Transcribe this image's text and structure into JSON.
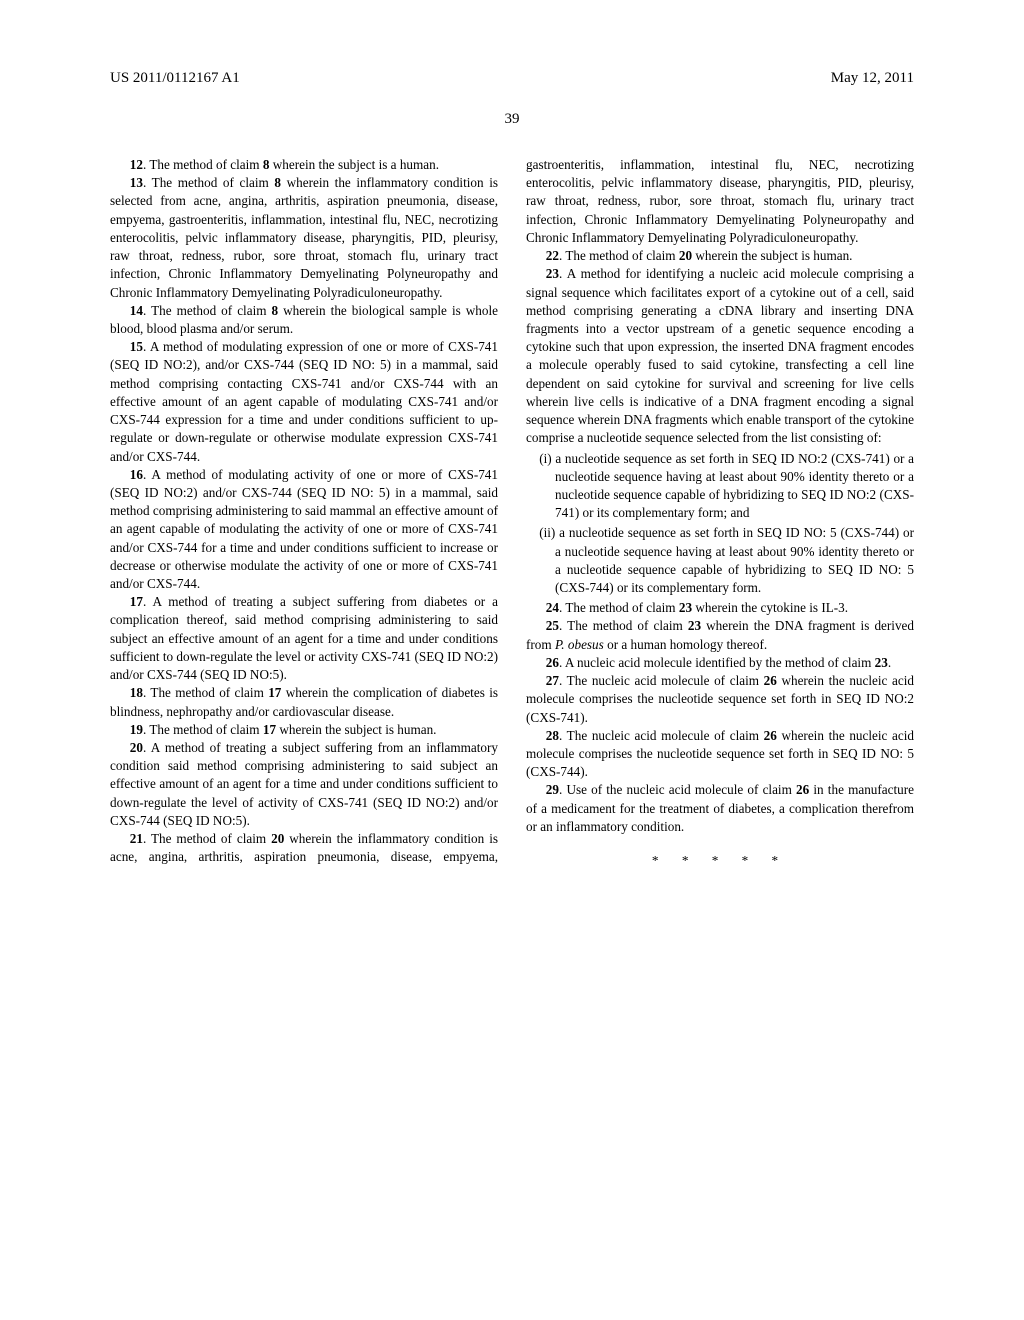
{
  "header": {
    "pub_number": "US 2011/0112167 A1",
    "date": "May 12, 2011"
  },
  "page_number": "39",
  "claims": [
    {
      "n": "12",
      "text": ". The method of claim ",
      "ref": "8",
      "tail": " wherein the subject is a human."
    },
    {
      "n": "13",
      "text": ". The method of claim ",
      "ref": "8",
      "tail": " wherein the inflammatory condition is selected from acne, angina, arthritis, aspiration pneumonia, disease, empyema, gastroenteritis, inflammation, intestinal flu, NEC, necrotizing enterocolitis, pelvic inflammatory disease, pharyngitis, PID, pleurisy, raw throat, redness, rubor, sore throat, stomach flu, urinary tract infection, Chronic Inflammatory Demyelinating Polyneuropathy and Chronic Inflammatory Demyelinating Polyradiculoneuropathy."
    },
    {
      "n": "14",
      "text": ". The method of claim ",
      "ref": "8",
      "tail": " wherein the biological sample is whole blood, blood plasma and/or serum."
    },
    {
      "n": "15",
      "plain": ". A method of modulating expression of one or more of CXS-741 (SEQ ID NO:2), and/or CXS-744 (SEQ ID NO: 5) in a mammal, said method comprising contacting CXS-741 and/or CXS-744 with an effective amount of an agent capable of modulating CXS-741 and/or CXS-744 expression for a time and under conditions sufficient to up-regulate or down-regulate or otherwise modulate expression CXS-741 and/or CXS-744."
    },
    {
      "n": "16",
      "plain": ". A method of modulating activity of one or more of CXS-741 (SEQ ID NO:2) and/or CXS-744 (SEQ ID NO: 5) in a mammal, said method comprising administering to said mammal an effective amount of an agent capable of modulating the activity of one or more of CXS-741 and/or CXS-744 for a time and under conditions sufficient to increase or decrease or otherwise modulate the activity of one or more of CXS-741 and/or CXS-744."
    },
    {
      "n": "17",
      "plain": ". A method of treating a subject suffering from diabetes or a complication thereof, said method comprising administering to said subject an effective amount of an agent for a time and under conditions sufficient to down-regulate the level or activity CXS-741 (SEQ ID NO:2) and/or CXS-744 (SEQ ID NO:5)."
    },
    {
      "n": "18",
      "text": ". The method of claim ",
      "ref": "17",
      "tail": " wherein the complication of diabetes is blindness, nephropathy and/or cardiovascular disease."
    },
    {
      "n": "19",
      "text": ". The method of claim ",
      "ref": "17",
      "tail": " wherein the subject is human."
    },
    {
      "n": "20",
      "plain": ". A method of treating a subject suffering from an inflammatory condition said method comprising administering to said subject an effective amount of an agent for a time and under conditions sufficient to down-regulate the level of activity of CXS-741 (SEQ ID NO:2) and/or CXS-744 (SEQ ID NO:5)."
    },
    {
      "n": "21",
      "text": ". The method of claim ",
      "ref": "20",
      "tail": " wherein the inflammatory condition is acne, angina, arthritis, aspiration pneumonia, disease, empyema, gastroenteritis, inflammation, intestinal flu, NEC, necrotizing enterocolitis, pelvic inflammatory disease, pharyngitis, PID, pleurisy, raw throat, redness, rubor, sore throat, stomach flu, urinary tract infection, Chronic Inflammatory Demyelinating Polyneuropathy and Chronic Inflammatory Demyelinating Polyradiculoneuropathy."
    },
    {
      "n": "22",
      "text": ". The method of claim ",
      "ref": "20",
      "tail": " wherein the subject is human."
    },
    {
      "n": "23",
      "plain": ". A method for identifying a nucleic acid molecule comprising a signal sequence which facilitates export of a cytokine out of a cell, said method comprising generating a cDNA library and inserting DNA fragments into a vector upstream of a genetic sequence encoding a cytokine such that upon expression, the inserted DNA fragment encodes a molecule operably fused to said cytokine, transfecting a cell line dependent on said cytokine for survival and screening for live cells wherein live cells is indicative of a DNA fragment encoding a signal sequence wherein DNA fragments which enable transport of the cytokine comprise a nucleotide sequence selected from the list consisting of:"
    }
  ],
  "sub_i": "(i) a nucleotide sequence as set forth in SEQ ID NO:2 (CXS-741) or a nucleotide sequence having at least about 90% identity thereto or a nucleotide sequence capable of hybridizing to SEQ ID NO:2 (CXS-741) or its complementary form; and",
  "sub_ii": "(ii) a nucleotide sequence as set forth in SEQ ID NO: 5 (CXS-744) or a nucleotide sequence having at least about 90% identity thereto or a nucleotide sequence capable of hybridizing to SEQ ID NO: 5 (CXS-744) or its complementary form.",
  "claims2": [
    {
      "n": "24",
      "text": ". The method of claim ",
      "ref": "23",
      "tail": " wherein the cytokine is IL-3."
    },
    {
      "n": "25",
      "text": ". The method of claim ",
      "ref": "23",
      "tail_pre": " wherein the DNA fragment is derived from ",
      "italic": "P. obesus",
      "tail_post": " or a human homology thereof."
    },
    {
      "n": "26",
      "text": ". A nucleic acid molecule identified by the method of claim ",
      "ref": "23",
      "tail": "."
    },
    {
      "n": "27",
      "text": ". The nucleic acid molecule of claim ",
      "ref": "26",
      "tail": " wherein the nucleic acid molecule comprises the nucleotide sequence set forth in SEQ ID NO:2 (CXS-741)."
    },
    {
      "n": "28",
      "text": ". The nucleic acid molecule of claim ",
      "ref": "26",
      "tail": " wherein the nucleic acid molecule comprises the nucleotide sequence set forth in SEQ ID NO: 5 (CXS-744)."
    },
    {
      "n": "29",
      "text": ". Use of the nucleic acid molecule of claim ",
      "ref": "26",
      "tail": " in the manufacture of a medicament for the treatment of diabetes, a complication therefrom or an inflammatory condition."
    }
  ],
  "end_marks": "*   *   *   *   *"
}
